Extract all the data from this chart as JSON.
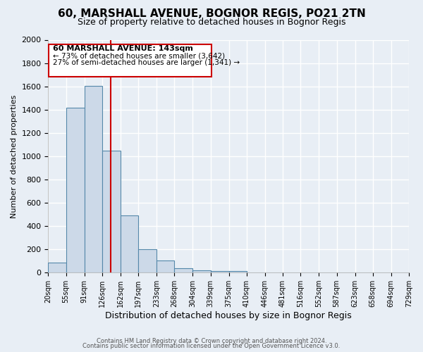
{
  "title": "60, MARSHALL AVENUE, BOGNOR REGIS, PO21 2TN",
  "subtitle": "Size of property relative to detached houses in Bognor Regis",
  "xlabel": "Distribution of detached houses by size in Bognor Regis",
  "ylabel": "Number of detached properties",
  "bar_edges": [
    20,
    55,
    91,
    126,
    162,
    197,
    233,
    268,
    304,
    339,
    375,
    410,
    446,
    481,
    516,
    552,
    587,
    623,
    658,
    694,
    729
  ],
  "bar_heights": [
    85,
    1415,
    1605,
    1050,
    490,
    200,
    105,
    40,
    20,
    15,
    15,
    0,
    0,
    0,
    0,
    0,
    0,
    0,
    0,
    0
  ],
  "bar_color": "#ccd9e8",
  "bar_edge_color": "#5588aa",
  "vline_x": 143,
  "vline_color": "#cc0000",
  "ylim": [
    0,
    2000
  ],
  "yticks": [
    0,
    200,
    400,
    600,
    800,
    1000,
    1200,
    1400,
    1600,
    1800,
    2000
  ],
  "annotation_title": "60 MARSHALL AVENUE: 143sqm",
  "annotation_line1": "← 73% of detached houses are smaller (3,642)",
  "annotation_line2": "27% of semi-detached houses are larger (1,341) →",
  "annotation_box_color": "#ffffff",
  "annotation_box_edge": "#cc0000",
  "footer1": "Contains HM Land Registry data © Crown copyright and database right 2024.",
  "footer2": "Contains public sector information licensed under the Open Government Licence v3.0.",
  "bg_color": "#e8eef5",
  "plot_bg_color": "#e8eef5",
  "grid_color": "#ffffff",
  "title_fontsize": 11,
  "subtitle_fontsize": 9
}
